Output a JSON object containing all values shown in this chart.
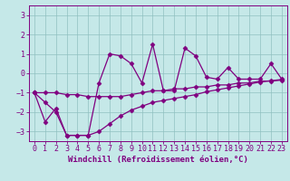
{
  "xlabel": "Windchill (Refroidissement éolien,°C)",
  "background_color": "#c5e8e8",
  "line_color": "#800080",
  "x_values": [
    0,
    1,
    2,
    3,
    4,
    5,
    6,
    7,
    8,
    9,
    10,
    11,
    12,
    13,
    14,
    15,
    16,
    17,
    18,
    19,
    20,
    21,
    22,
    23
  ],
  "temp_values": [
    -1.0,
    -2.5,
    -1.8,
    -3.2,
    -3.2,
    -3.2,
    -0.5,
    1.0,
    0.9,
    0.5,
    -0.5,
    1.5,
    -0.9,
    -0.9,
    1.3,
    0.9,
    -0.2,
    -0.3,
    0.3,
    -0.3,
    -0.3,
    -0.3,
    0.5,
    -0.3
  ],
  "line_upper": [
    -1.0,
    -1.0,
    -1.0,
    -1.1,
    -1.1,
    -1.2,
    -1.2,
    -1.2,
    -1.2,
    -1.1,
    -1.0,
    -0.9,
    -0.9,
    -0.8,
    -0.8,
    -0.7,
    -0.7,
    -0.6,
    -0.6,
    -0.5,
    -0.5,
    -0.4,
    -0.4,
    -0.35
  ],
  "line_lower": [
    -1.0,
    -1.5,
    -2.0,
    -3.2,
    -3.2,
    -3.2,
    -3.0,
    -2.6,
    -2.2,
    -1.9,
    -1.7,
    -1.5,
    -1.4,
    -1.3,
    -1.2,
    -1.1,
    -0.95,
    -0.85,
    -0.75,
    -0.65,
    -0.55,
    -0.45,
    -0.38,
    -0.32
  ],
  "ylim": [
    -3.5,
    3.5
  ],
  "xlim": [
    -0.5,
    23.5
  ],
  "yticks": [
    -3,
    -2,
    -1,
    0,
    1,
    2,
    3
  ],
  "xticks": [
    0,
    1,
    2,
    3,
    4,
    5,
    6,
    7,
    8,
    9,
    10,
    11,
    12,
    13,
    14,
    15,
    16,
    17,
    18,
    19,
    20,
    21,
    22,
    23
  ],
  "grid_color": "#90c0c0",
  "marker": "D",
  "markersize": 2.5,
  "linewidth": 0.9,
  "xlabel_fontsize": 6.5,
  "tick_fontsize": 6
}
